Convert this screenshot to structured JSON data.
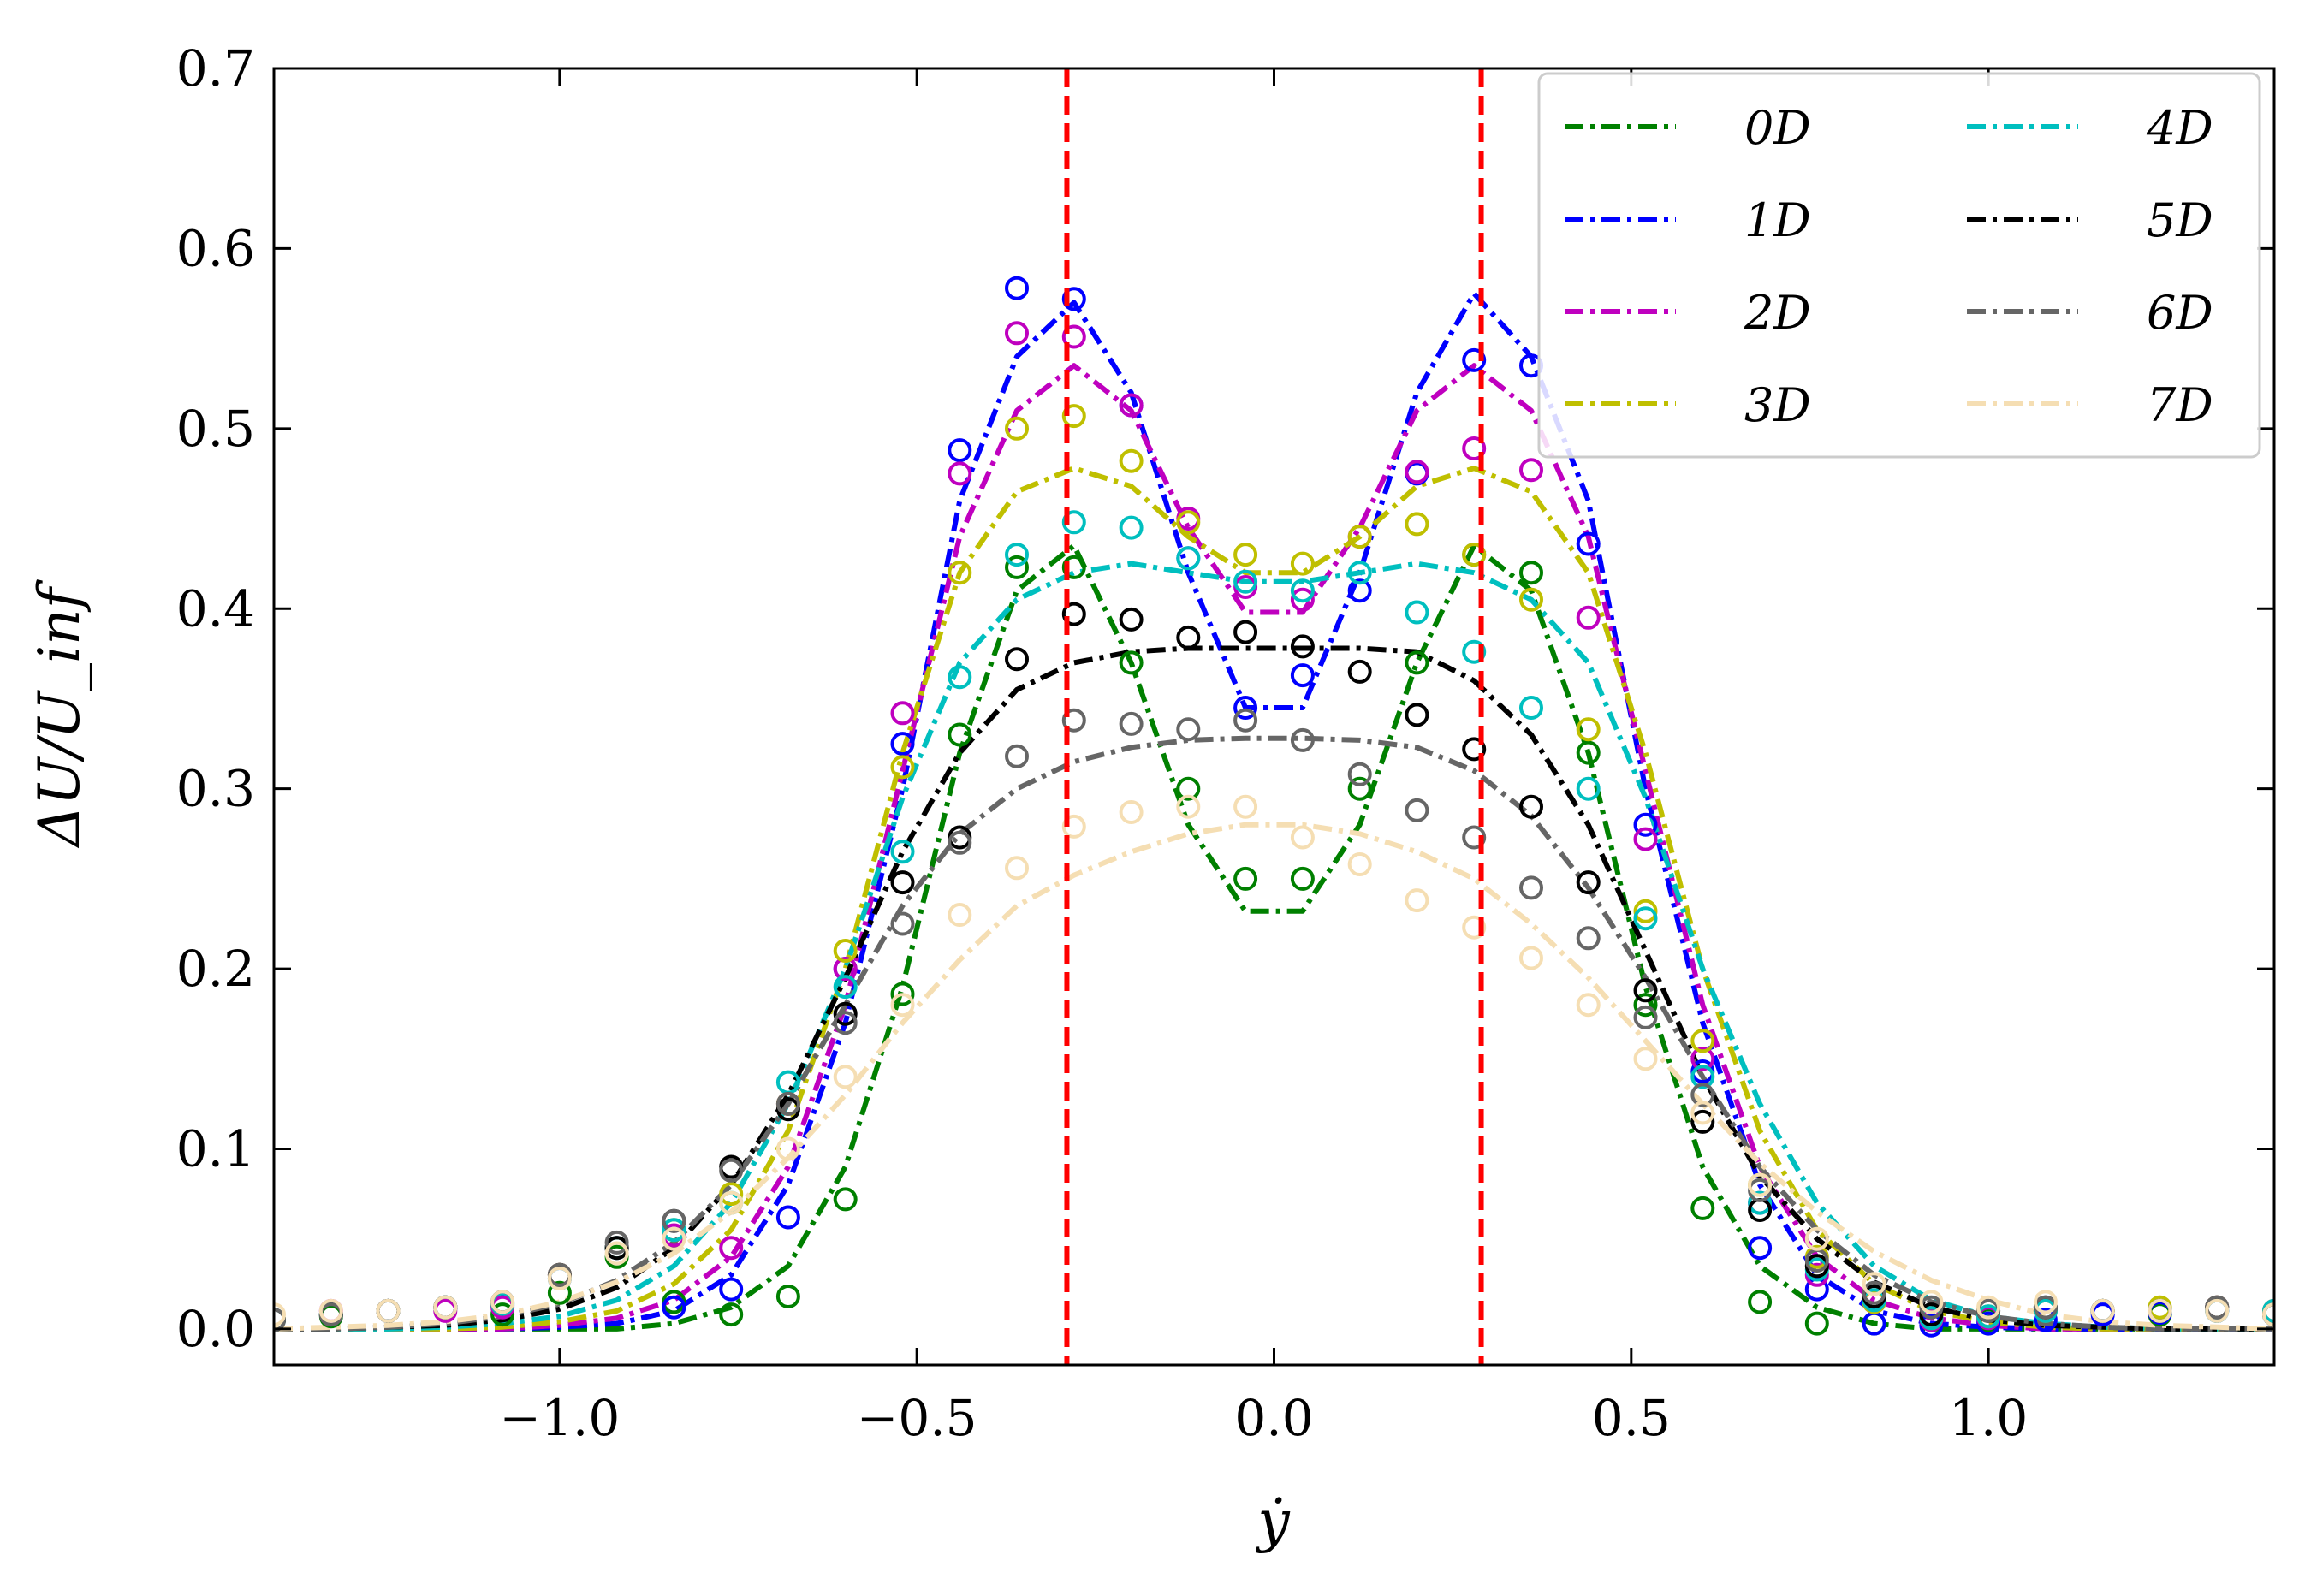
{
  "chart_data": {
    "type": "line",
    "title": "",
    "xlabel": "ẏ",
    "ylabel": "ΔU/U_inf",
    "xlim": [
      -1.4,
      1.4
    ],
    "ylim": [
      -0.02,
      0.7
    ],
    "xticks": [
      -1.0,
      -0.5,
      0.0,
      0.5,
      1.0
    ],
    "xtick_labels": [
      "−1.0",
      "−0.5",
      "0.0",
      "0.5",
      "1.0"
    ],
    "yticks": [
      0.0,
      0.1,
      0.2,
      0.3,
      0.4,
      0.5,
      0.6,
      0.7
    ],
    "ytick_labels": [
      "0.0",
      "0.1",
      "0.2",
      "0.3",
      "0.4",
      "0.5",
      "0.6",
      "0.7"
    ],
    "grid": false,
    "legend_position": "top-right",
    "vlines": [
      {
        "x": -0.29,
        "color": "#ff0000"
      },
      {
        "x": 0.29,
        "color": "#ff0000"
      }
    ],
    "series_x": [
      -1.4,
      -1.32,
      -1.24,
      -1.16,
      -1.08,
      -1.0,
      -0.92,
      -0.84,
      -0.76,
      -0.68,
      -0.6,
      -0.52,
      -0.44,
      -0.36,
      -0.28,
      -0.2,
      -0.12,
      -0.04,
      0.04,
      0.12,
      0.2,
      0.28,
      0.36,
      0.44,
      0.52,
      0.6,
      0.68,
      0.76,
      0.84,
      0.92,
      1.0,
      1.08,
      1.16,
      1.24,
      1.32,
      1.4
    ],
    "marker_x": [
      -1.4,
      -1.32,
      -1.24,
      -1.16,
      -1.08,
      -1.0,
      -0.92,
      -0.84,
      -0.76,
      -0.68,
      -0.6,
      -0.52,
      -0.44,
      -0.36,
      -0.28,
      -0.2,
      -0.12,
      -0.04,
      0.04,
      0.12,
      0.2,
      0.28,
      0.36,
      0.44,
      0.52,
      0.6,
      0.68,
      0.76,
      0.84,
      0.92,
      1.0,
      1.08,
      1.16,
      1.24,
      1.32,
      1.4
    ],
    "series": [
      {
        "name": "0D",
        "color": "#008000",
        "values": [
          0.0,
          0.0,
          0.0,
          0.0,
          0.0,
          0.0,
          0.0,
          0.003,
          0.012,
          0.035,
          0.09,
          0.19,
          0.32,
          0.41,
          0.435,
          0.37,
          0.28,
          0.232,
          0.232,
          0.28,
          0.37,
          0.435,
          0.41,
          0.32,
          0.19,
          0.09,
          0.035,
          0.012,
          0.003,
          0.0,
          0.0,
          0.0,
          0.0,
          0.0,
          0.0,
          0.0
        ],
        "markers": [
          0.005,
          0.007,
          0.01,
          0.012,
          0.008,
          0.02,
          0.04,
          0.015,
          0.008,
          0.018,
          0.072,
          0.186,
          0.33,
          0.423,
          0.423,
          0.37,
          0.3,
          0.25,
          0.25,
          0.3,
          0.37,
          0.43,
          0.42,
          0.32,
          0.18,
          0.067,
          0.015,
          0.003,
          0.003,
          0.005,
          0.005,
          0.01,
          0.01,
          0.008,
          0.01,
          0.008
        ]
      },
      {
        "name": "1D",
        "color": "#0000ff",
        "values": [
          0.0,
          0.0,
          0.0,
          0.0,
          0.0,
          0.001,
          0.003,
          0.01,
          0.03,
          0.08,
          0.17,
          0.3,
          0.46,
          0.54,
          0.57,
          0.52,
          0.42,
          0.345,
          0.345,
          0.42,
          0.52,
          0.575,
          0.54,
          0.46,
          0.3,
          0.17,
          0.08,
          0.03,
          0.01,
          0.003,
          0.001,
          0.0,
          0.0,
          0.0,
          0.0,
          0.0
        ],
        "markers": [
          0.005,
          0.008,
          0.01,
          0.012,
          0.013,
          0.028,
          0.045,
          0.012,
          0.022,
          0.062,
          0.2,
          0.325,
          0.488,
          0.578,
          0.572,
          0.513,
          0.428,
          0.345,
          0.363,
          0.41,
          0.475,
          0.538,
          0.535,
          0.436,
          0.28,
          0.143,
          0.045,
          0.022,
          0.003,
          0.002,
          0.003,
          0.005,
          0.008,
          0.009,
          0.01,
          0.008
        ]
      },
      {
        "name": "2D",
        "color": "#bf00bf",
        "values": [
          0.0,
          0.0,
          0.0,
          0.0,
          0.0,
          0.002,
          0.006,
          0.016,
          0.04,
          0.09,
          0.18,
          0.31,
          0.44,
          0.51,
          0.535,
          0.51,
          0.445,
          0.398,
          0.398,
          0.445,
          0.51,
          0.535,
          0.51,
          0.44,
          0.31,
          0.18,
          0.09,
          0.04,
          0.016,
          0.006,
          0.002,
          0.0,
          0.0,
          0.0,
          0.0,
          0.0
        ],
        "markers": [
          0.005,
          0.01,
          0.01,
          0.01,
          0.012,
          0.03,
          0.045,
          0.052,
          0.045,
          0.125,
          0.2,
          0.342,
          0.475,
          0.553,
          0.551,
          0.513,
          0.45,
          0.412,
          0.405,
          0.44,
          0.476,
          0.489,
          0.477,
          0.395,
          0.272,
          0.15,
          0.07,
          0.03,
          0.015,
          0.005,
          0.006,
          0.01,
          0.01,
          0.01,
          0.012,
          0.01
        ]
      },
      {
        "name": "3D",
        "color": "#bfbf00",
        "values": [
          0.0,
          0.0,
          0.0,
          0.0,
          0.001,
          0.004,
          0.01,
          0.025,
          0.055,
          0.11,
          0.2,
          0.32,
          0.42,
          0.465,
          0.478,
          0.468,
          0.44,
          0.42,
          0.42,
          0.44,
          0.468,
          0.478,
          0.465,
          0.42,
          0.32,
          0.2,
          0.11,
          0.055,
          0.025,
          0.01,
          0.004,
          0.001,
          0.0,
          0.0,
          0.0,
          0.0
        ],
        "markers": [
          0.005,
          0.008,
          0.01,
          0.012,
          0.014,
          0.03,
          0.045,
          0.055,
          0.075,
          0.125,
          0.21,
          0.312,
          0.42,
          0.5,
          0.507,
          0.482,
          0.448,
          0.43,
          0.425,
          0.44,
          0.447,
          0.43,
          0.405,
          0.333,
          0.232,
          0.16,
          0.08,
          0.04,
          0.015,
          0.006,
          0.007,
          0.01,
          0.01,
          0.012,
          0.012,
          0.01
        ]
      },
      {
        "name": "4D",
        "color": "#00bfbf",
        "values": [
          0.0,
          0.0,
          0.0,
          0.001,
          0.003,
          0.007,
          0.016,
          0.035,
          0.07,
          0.125,
          0.2,
          0.295,
          0.37,
          0.405,
          0.42,
          0.425,
          0.42,
          0.415,
          0.415,
          0.42,
          0.425,
          0.42,
          0.405,
          0.37,
          0.295,
          0.2,
          0.125,
          0.07,
          0.035,
          0.016,
          0.007,
          0.003,
          0.001,
          0.0,
          0.0,
          0.0
        ],
        "markers": [
          0.005,
          0.008,
          0.01,
          0.012,
          0.014,
          0.028,
          0.045,
          0.055,
          0.07,
          0.137,
          0.19,
          0.265,
          0.362,
          0.43,
          0.448,
          0.445,
          0.428,
          0.415,
          0.41,
          0.42,
          0.398,
          0.376,
          0.345,
          0.3,
          0.228,
          0.14,
          0.07,
          0.033,
          0.016,
          0.006,
          0.007,
          0.01,
          0.01,
          0.01,
          0.01,
          0.01
        ]
      },
      {
        "name": "5D",
        "color": "#000000",
        "values": [
          0.0,
          0.0,
          0.001,
          0.002,
          0.005,
          0.011,
          0.023,
          0.045,
          0.08,
          0.13,
          0.195,
          0.265,
          0.32,
          0.355,
          0.37,
          0.376,
          0.378,
          0.378,
          0.378,
          0.378,
          0.376,
          0.36,
          0.33,
          0.28,
          0.21,
          0.14,
          0.085,
          0.05,
          0.026,
          0.012,
          0.005,
          0.002,
          0.001,
          0.0,
          0.0,
          0.0
        ],
        "markers": [
          0.005,
          0.008,
          0.01,
          0.012,
          0.015,
          0.03,
          0.045,
          0.06,
          0.09,
          0.122,
          0.175,
          0.248,
          0.273,
          0.372,
          0.397,
          0.394,
          0.384,
          0.387,
          0.379,
          0.365,
          0.341,
          0.322,
          0.29,
          0.248,
          0.188,
          0.115,
          0.066,
          0.035,
          0.018,
          0.008,
          0.01,
          0.012,
          0.01,
          0.01,
          0.012,
          0.008
        ]
      },
      {
        "name": "6D",
        "color": "#666666",
        "values": [
          0.0,
          0.0,
          0.001,
          0.003,
          0.007,
          0.014,
          0.027,
          0.048,
          0.08,
          0.125,
          0.18,
          0.235,
          0.275,
          0.3,
          0.315,
          0.323,
          0.327,
          0.328,
          0.328,
          0.327,
          0.323,
          0.31,
          0.285,
          0.245,
          0.195,
          0.14,
          0.09,
          0.055,
          0.03,
          0.015,
          0.007,
          0.003,
          0.001,
          0.0,
          0.0,
          0.0
        ],
        "markers": [
          0.005,
          0.008,
          0.01,
          0.012,
          0.015,
          0.03,
          0.048,
          0.06,
          0.088,
          0.125,
          0.17,
          0.225,
          0.27,
          0.318,
          0.338,
          0.336,
          0.333,
          0.338,
          0.327,
          0.308,
          0.288,
          0.273,
          0.245,
          0.217,
          0.173,
          0.13,
          0.077,
          0.038,
          0.02,
          0.012,
          0.01,
          0.012,
          0.01,
          0.01,
          0.012,
          0.008
        ]
      },
      {
        "name": "7D",
        "color": "#f5deb3",
        "values": [
          0.0,
          0.001,
          0.002,
          0.004,
          0.008,
          0.015,
          0.026,
          0.042,
          0.065,
          0.095,
          0.13,
          0.17,
          0.205,
          0.235,
          0.252,
          0.265,
          0.275,
          0.28,
          0.28,
          0.275,
          0.265,
          0.25,
          0.225,
          0.195,
          0.16,
          0.125,
          0.092,
          0.065,
          0.043,
          0.027,
          0.016,
          0.008,
          0.004,
          0.002,
          0.001,
          0.0
        ],
        "markers": [
          0.008,
          0.01,
          0.01,
          0.012,
          0.015,
          0.028,
          0.042,
          0.05,
          0.07,
          0.1,
          0.14,
          0.18,
          0.23,
          0.256,
          0.279,
          0.287,
          0.29,
          0.29,
          0.273,
          0.258,
          0.238,
          0.223,
          0.206,
          0.18,
          0.15,
          0.12,
          0.08,
          0.05,
          0.025,
          0.015,
          0.012,
          0.015,
          0.01,
          0.01,
          0.01,
          0.008
        ]
      }
    ]
  }
}
